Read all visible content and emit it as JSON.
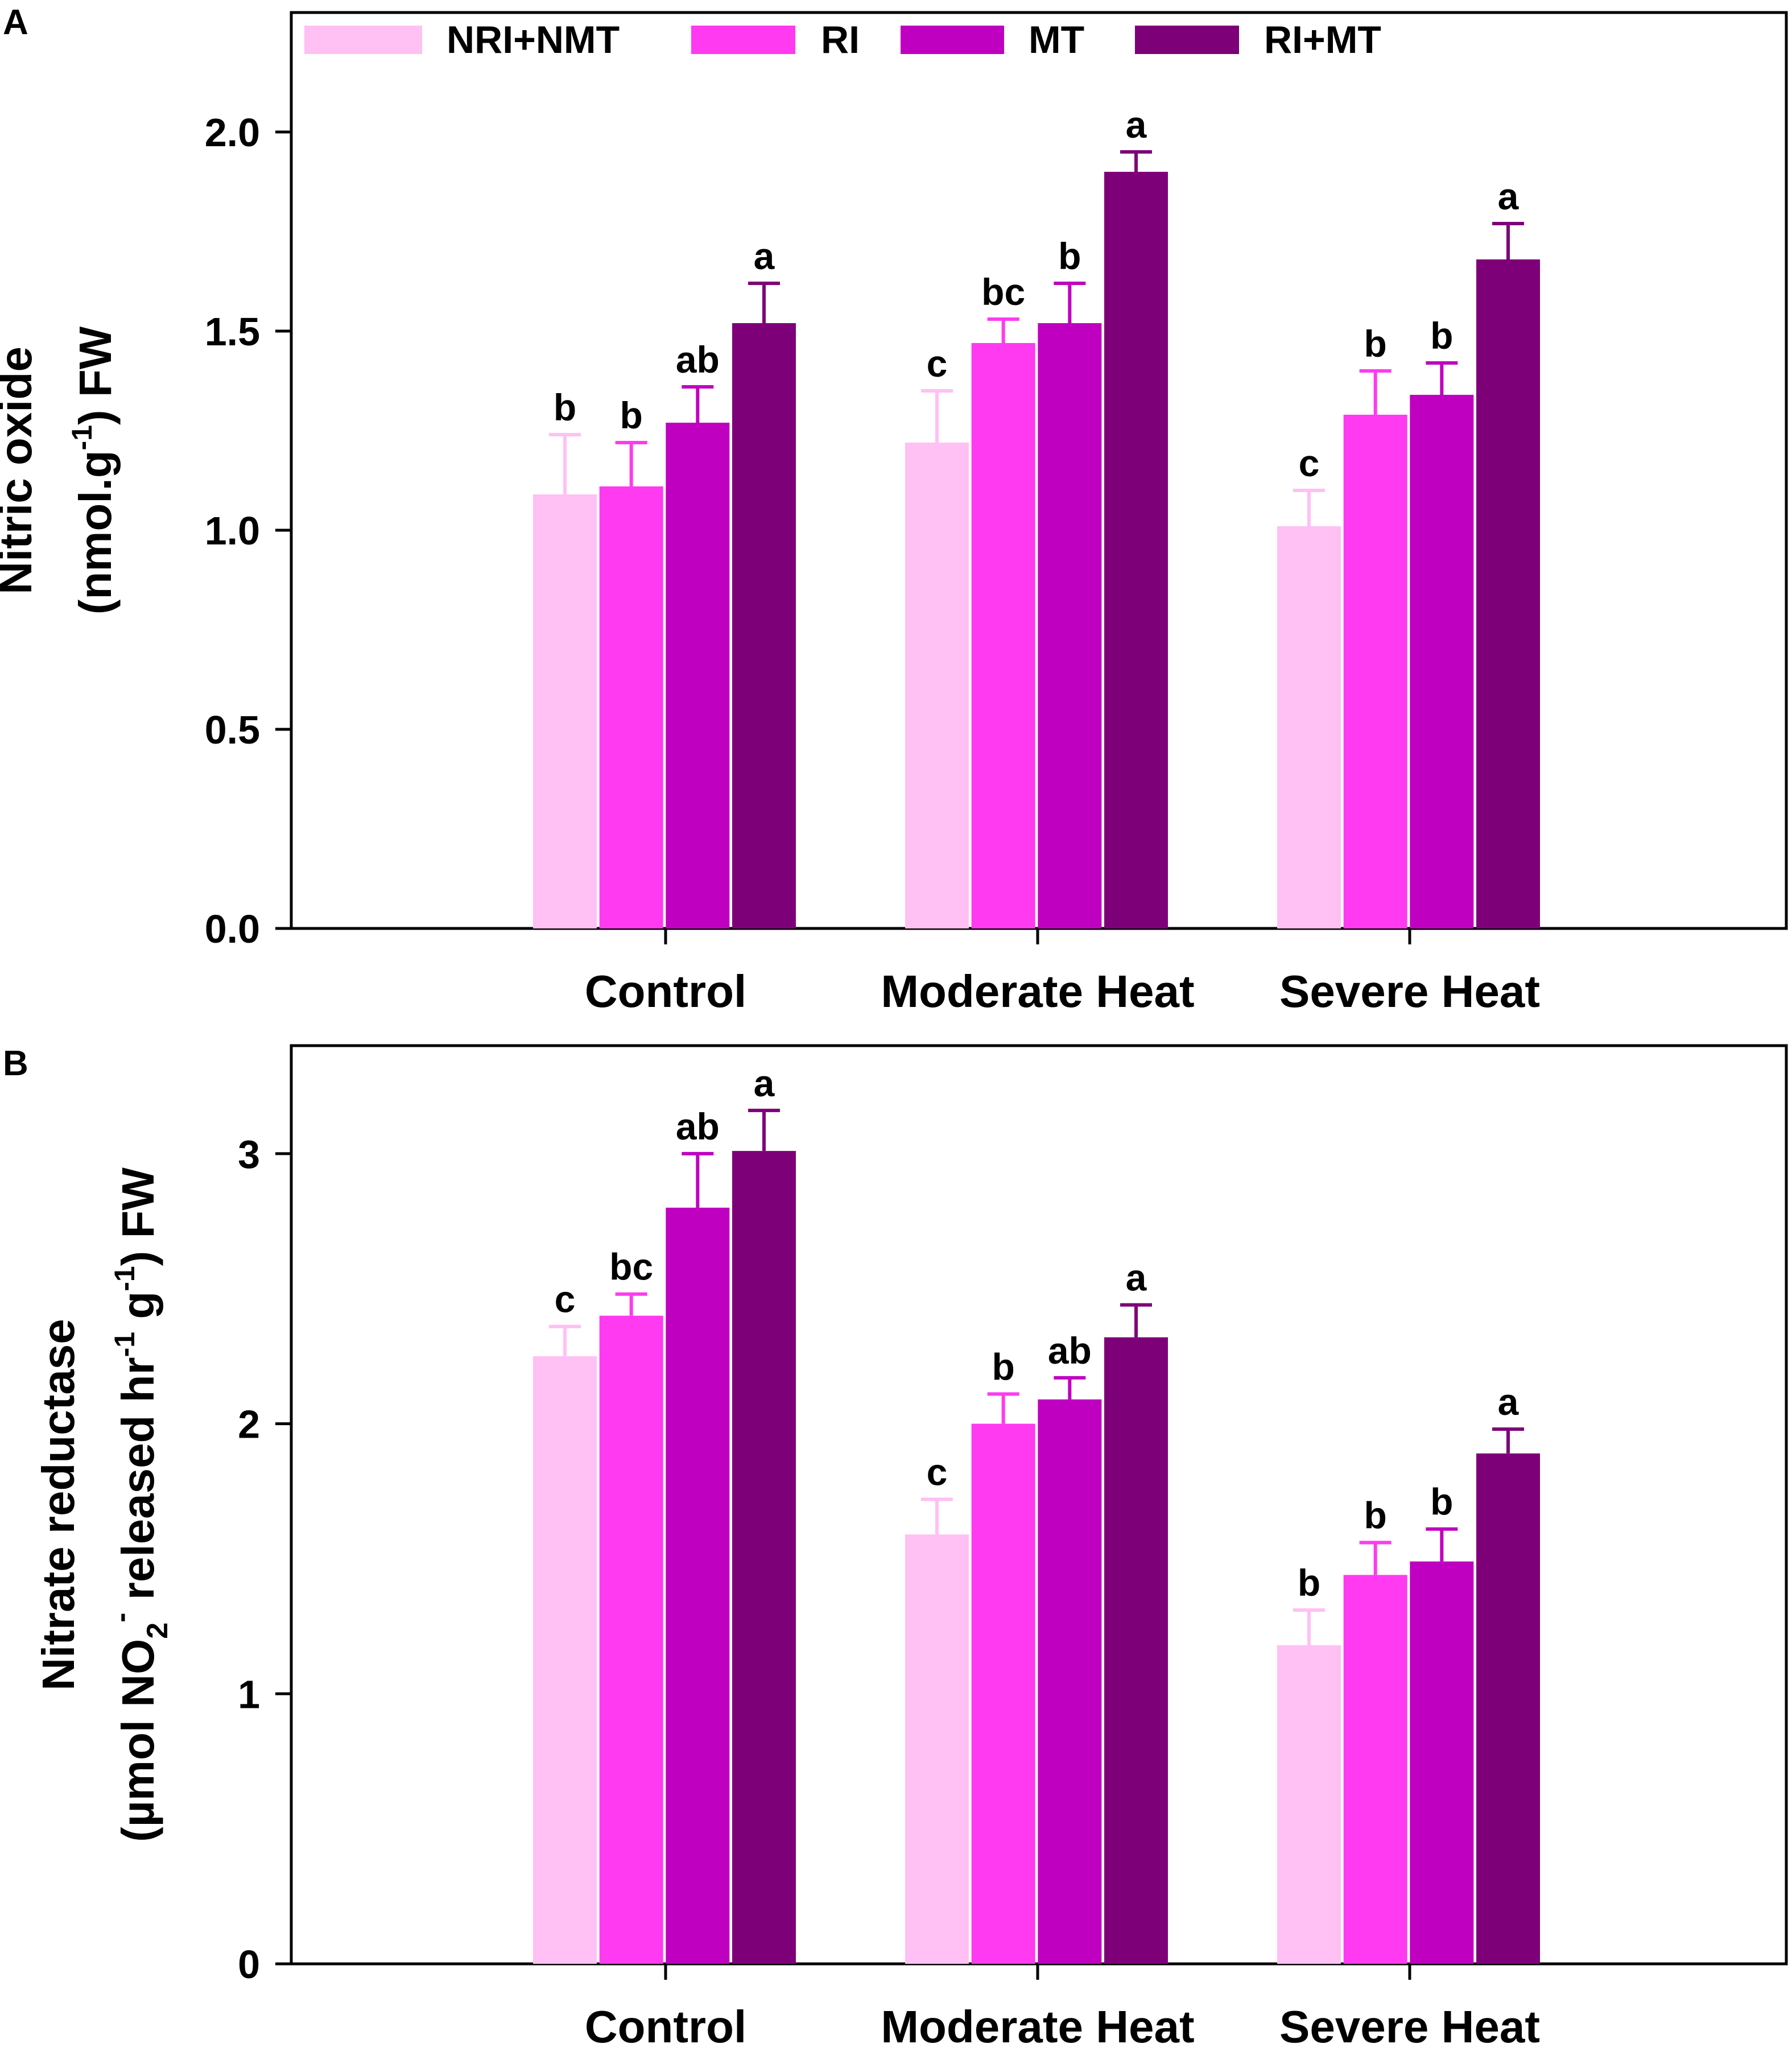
{
  "colors": {
    "NRI+NMT": "#ffc0f4",
    "RI": "#ff3af0",
    "MT": "#c000c0",
    "RI+MT": "#7e0078"
  },
  "legend": [
    "NRI+NMT",
    "RI",
    "MT",
    "RI+MT"
  ],
  "chart_data": [
    {
      "panel": "A",
      "type": "bar",
      "categories": [
        "Control",
        "Moderate Heat",
        "Severe Heat"
      ],
      "ylabel_line1": "Nitric oxide",
      "ylabel_line2_pre": "(nmol.g",
      "ylabel_line2_sup": "-1",
      "ylabel_line2_post": ") FW",
      "ylim": [
        0,
        2.3
      ],
      "yticks": [
        "0.0",
        "0.5",
        "1.0",
        "1.5",
        "2.0"
      ],
      "ytick_values": [
        0,
        0.5,
        1.0,
        1.5,
        2.0
      ],
      "series": [
        {
          "name": "NRI+NMT",
          "values": [
            1.09,
            1.22,
            1.01
          ],
          "errors": [
            0.15,
            0.13,
            0.09
          ],
          "letters": [
            "b",
            "c",
            "c"
          ]
        },
        {
          "name": "RI",
          "values": [
            1.11,
            1.47,
            1.29
          ],
          "errors": [
            0.11,
            0.06,
            0.11
          ],
          "letters": [
            "b",
            "bc",
            "b"
          ]
        },
        {
          "name": "MT",
          "values": [
            1.27,
            1.52,
            1.34
          ],
          "errors": [
            0.09,
            0.1,
            0.08
          ],
          "letters": [
            "ab",
            "b",
            "b"
          ]
        },
        {
          "name": "RI+MT",
          "values": [
            1.52,
            1.9,
            1.68
          ],
          "errors": [
            0.1,
            0.05,
            0.09
          ],
          "letters": [
            "a",
            "a",
            "a"
          ]
        }
      ]
    },
    {
      "panel": "B",
      "type": "bar",
      "categories": [
        "Control",
        "Moderate Heat",
        "Severe Heat"
      ],
      "ylabel_line1": "Nitrate reductase",
      "ylabel_line2_a": "(µmol NO",
      "ylabel_line2_sub": "2",
      "ylabel_line2_sup1": "-",
      "ylabel_line2_b": " released hr",
      "ylabel_line2_sup2": "-1",
      "ylabel_line2_c": " g",
      "ylabel_line2_sup3": "-1",
      "ylabel_line2_d": ") FW",
      "ylim": [
        0,
        3.4
      ],
      "yticks": [
        "0",
        "1",
        "2",
        "3"
      ],
      "ytick_values": [
        0,
        1,
        2,
        3
      ],
      "series": [
        {
          "name": "NRI+NMT",
          "values": [
            2.25,
            1.59,
            1.18
          ],
          "errors": [
            0.11,
            0.13,
            0.13
          ],
          "letters": [
            "c",
            "c",
            "b"
          ]
        },
        {
          "name": "RI",
          "values": [
            2.4,
            2.0,
            1.44
          ],
          "errors": [
            0.08,
            0.11,
            0.12
          ],
          "letters": [
            "bc",
            "b",
            "b"
          ]
        },
        {
          "name": "MT",
          "values": [
            2.8,
            2.09,
            1.49
          ],
          "errors": [
            0.2,
            0.08,
            0.12
          ],
          "letters": [
            "ab",
            "ab",
            "b"
          ]
        },
        {
          "name": "RI+MT",
          "values": [
            3.01,
            2.32,
            1.89
          ],
          "errors": [
            0.15,
            0.12,
            0.09
          ],
          "letters": [
            "a",
            "a",
            "a"
          ]
        }
      ]
    }
  ]
}
